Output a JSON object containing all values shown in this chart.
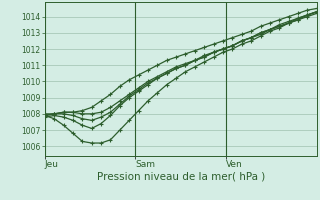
{
  "background_color": "#d4ede4",
  "grid_color": "#a8c8b8",
  "line_color": "#2d5e2d",
  "xlabel": "Pression niveau de la mer( hPa )",
  "yticks": [
    1006,
    1007,
    1008,
    1009,
    1010,
    1011,
    1012,
    1013,
    1014
  ],
  "xtick_labels": [
    "Jeu",
    "Sam",
    "Ven"
  ],
  "xtick_positions": [
    0,
    33,
    66
  ],
  "ylim": [
    1005.4,
    1014.9
  ],
  "xlim": [
    0,
    99
  ],
  "vlines": [
    0,
    33,
    66
  ],
  "series": [
    [
      1007.9,
      1008.0,
      1008.1,
      1008.1,
      1008.2,
      1008.4,
      1008.8,
      1009.2,
      1009.7,
      1010.1,
      1010.4,
      1010.7,
      1011.0,
      1011.3,
      1011.5,
      1011.7,
      1011.9,
      1012.1,
      1012.3,
      1012.5,
      1012.7,
      1012.9,
      1013.1,
      1013.4,
      1013.6,
      1013.8,
      1014.0,
      1014.2,
      1014.4,
      1014.5
    ],
    [
      1007.8,
      1007.9,
      1007.8,
      1007.6,
      1007.3,
      1007.1,
      1007.4,
      1007.9,
      1008.5,
      1009.0,
      1009.4,
      1009.8,
      1010.2,
      1010.5,
      1010.8,
      1011.0,
      1011.3,
      1011.5,
      1011.8,
      1012.0,
      1012.2,
      1012.5,
      1012.7,
      1013.0,
      1013.2,
      1013.5,
      1013.7,
      1013.9,
      1014.1,
      1014.3
    ],
    [
      1007.9,
      1007.7,
      1007.3,
      1006.8,
      1006.3,
      1006.2,
      1006.2,
      1006.4,
      1007.0,
      1007.6,
      1008.2,
      1008.8,
      1009.3,
      1009.8,
      1010.2,
      1010.6,
      1010.9,
      1011.2,
      1011.5,
      1011.8,
      1012.0,
      1012.3,
      1012.5,
      1012.8,
      1013.1,
      1013.3,
      1013.6,
      1013.8,
      1014.1,
      1014.3
    ],
    [
      1007.9,
      1008.0,
      1008.1,
      1008.1,
      1008.0,
      1008.0,
      1008.1,
      1008.4,
      1008.8,
      1009.2,
      1009.6,
      1010.0,
      1010.3,
      1010.6,
      1010.9,
      1011.1,
      1011.3,
      1011.6,
      1011.8,
      1012.0,
      1012.2,
      1012.5,
      1012.7,
      1013.0,
      1013.2,
      1013.4,
      1013.6,
      1013.8,
      1014.0,
      1014.2
    ],
    [
      1008.0,
      1008.0,
      1008.0,
      1007.9,
      1007.7,
      1007.6,
      1007.8,
      1008.1,
      1008.6,
      1009.1,
      1009.5,
      1009.9,
      1010.2,
      1010.5,
      1010.8,
      1011.0,
      1011.3,
      1011.5,
      1011.8,
      1012.0,
      1012.2,
      1012.5,
      1012.7,
      1012.9,
      1013.2,
      1013.4,
      1013.6,
      1013.9,
      1014.1,
      1014.3
    ]
  ],
  "marker_size": 2.2,
  "line_width": 0.9,
  "ytick_fontsize": 5.5,
  "xtick_fontsize": 6.5,
  "xlabel_fontsize": 7.5
}
